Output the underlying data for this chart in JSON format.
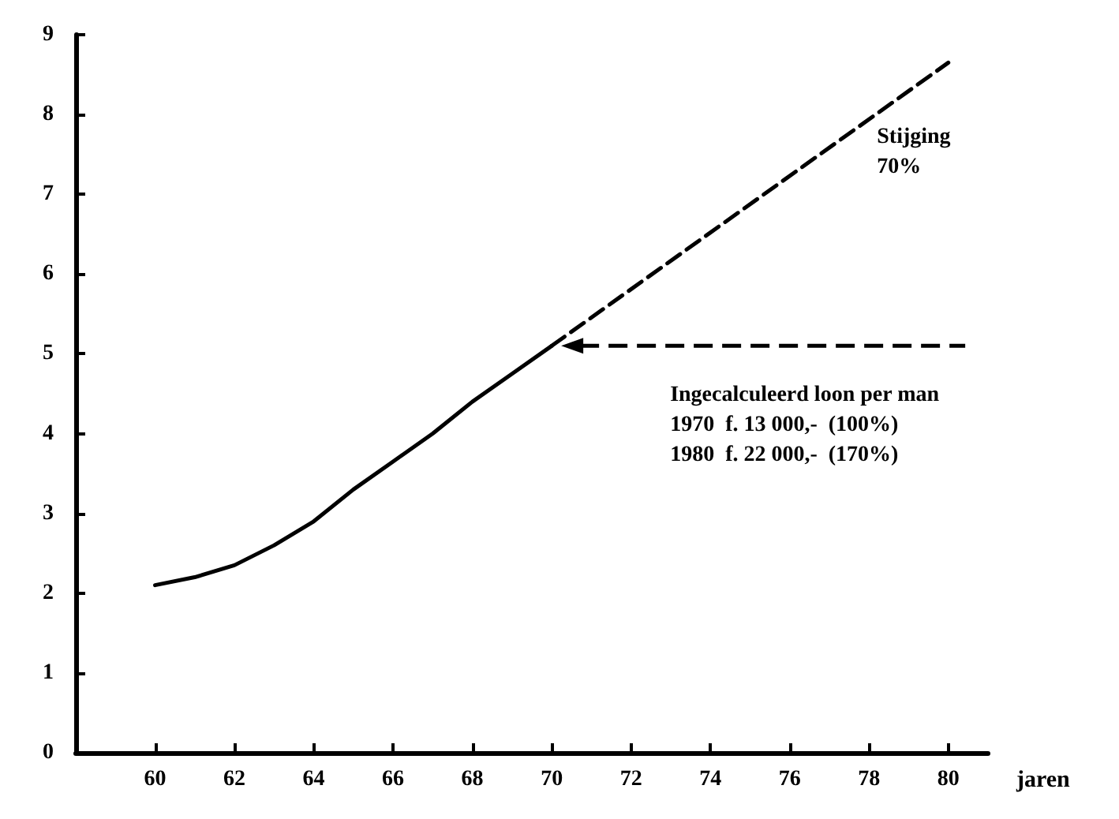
{
  "chart_data": {
    "type": "line",
    "xlabel": "jaren",
    "xlim": [
      58,
      81
    ],
    "xticks": [
      60,
      62,
      64,
      66,
      68,
      70,
      72,
      74,
      76,
      78,
      80
    ],
    "ylim": [
      0,
      9
    ],
    "yticks": [
      0,
      1,
      2,
      3,
      4,
      5,
      6,
      7,
      8,
      9
    ],
    "grid": false,
    "marker": "none",
    "series": [
      {
        "color": "#000000",
        "line_style": "solid",
        "x": [
          60,
          61,
          62,
          63,
          64,
          65,
          66,
          67,
          68,
          69,
          70
        ],
        "values": [
          2.1,
          2.2,
          2.35,
          2.6,
          2.9,
          3.3,
          3.65,
          4.0,
          4.4,
          4.75,
          5.1
        ]
      },
      {
        "color": "#000000",
        "line_style": "dashed",
        "x": [
          70,
          80
        ],
        "values": [
          5.1,
          8.65
        ]
      }
    ],
    "annotations": [
      {
        "text": "Stijging\n70%",
        "x": 78.2,
        "y": 7.9
      },
      "Ingecalculeerd loon per man\n1970  f. 13 000,-  (100%)\n1980  f. 22 000,-  (170%)"
    ]
  }
}
